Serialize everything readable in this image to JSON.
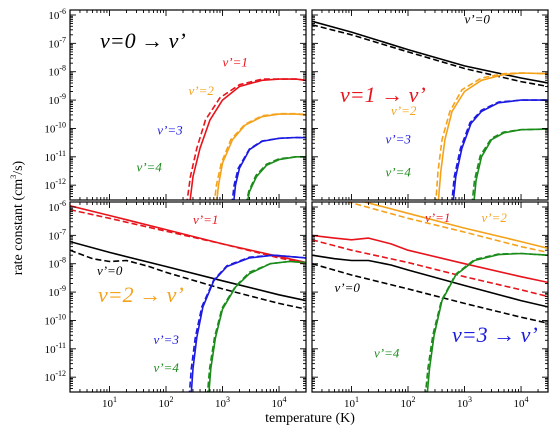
{
  "ylabel": "rate constant (cm3/s)",
  "xlabel": "temperature (K)",
  "colors": {
    "v0": "#000000",
    "v1": "#e8141c",
    "v2": "#f5a21b",
    "v3": "#1c1ae0",
    "v4": "#1a8c1a"
  },
  "chart_data": [
    {
      "type": "line",
      "title": "v=0 → v’",
      "title_color": "#000000",
      "xscale": "log",
      "yscale": "log",
      "xlim": [
        2,
        30000
      ],
      "ylim": [
        3e-13,
        1.5e-06
      ],
      "series": [
        {
          "name": "v’=1",
          "color": "#e8141c",
          "style": "solid",
          "x": [
            250,
            300,
            400,
            600,
            1000,
            2000,
            5000,
            10000,
            20000,
            30000
          ],
          "y": [
            1e-13,
            2e-12,
            2e-11,
            2e-10,
            1e-09,
            3e-09,
            5e-09,
            5.5e-09,
            5.5e-09,
            5e-09
          ]
        },
        {
          "name": "v’=1",
          "color": "#e8141c",
          "style": "dashed",
          "x": [
            220,
            270,
            350,
            500,
            900,
            2000,
            5000,
            10000,
            20000,
            30000
          ],
          "y": [
            1e-13,
            2e-12,
            2e-11,
            2e-10,
            1.2e-09,
            3.5e-09,
            5.5e-09,
            5.5e-09,
            5.5e-09,
            5e-09
          ]
        },
        {
          "name": "v’=2",
          "color": "#f5a21b",
          "style": "solid",
          "x": [
            750,
            850,
            1000,
            1500,
            2500,
            5000,
            10000,
            20000,
            30000
          ],
          "y": [
            1e-13,
            1e-12,
            6e-12,
            4e-11,
            1.3e-10,
            2.6e-10,
            3.2e-10,
            3.2e-10,
            3e-10
          ]
        },
        {
          "name": "v’=2",
          "color": "#f5a21b",
          "style": "dashed",
          "x": [
            680,
            780,
            950,
            1400,
            2500,
            5000,
            10000,
            20000,
            30000
          ],
          "y": [
            1e-13,
            1e-12,
            6e-12,
            4e-11,
            1.4e-10,
            2.8e-10,
            3.3e-10,
            3.3e-10,
            3.1e-10
          ]
        },
        {
          "name": "v’=3",
          "color": "#1c1ae0",
          "style": "solid",
          "x": [
            1500,
            1700,
            2000,
            3000,
            5000,
            10000,
            20000,
            30000
          ],
          "y": [
            1e-13,
            1e-12,
            4e-12,
            1.8e-11,
            3.5e-11,
            4.5e-11,
            4.8e-11,
            4.7e-11
          ]
        },
        {
          "name": "v’=3",
          "color": "#1c1ae0",
          "style": "dashed",
          "x": [
            1400,
            1600,
            1900,
            3000,
            5000,
            10000,
            20000,
            30000
          ],
          "y": [
            1e-13,
            1e-12,
            4e-12,
            1.9e-11,
            3.6e-11,
            4.5e-11,
            4.8e-11,
            4.7e-11
          ]
        },
        {
          "name": "v’=4",
          "color": "#1a8c1a",
          "style": "solid",
          "x": [
            2500,
            3000,
            4000,
            6000,
            10000,
            20000,
            30000
          ],
          "y": [
            1e-13,
            6e-13,
            2e-12,
            5e-12,
            8e-12,
            1e-11,
            1e-11
          ]
        },
        {
          "name": "v’=4",
          "color": "#1a8c1a",
          "style": "dashed",
          "x": [
            2400,
            2900,
            3900,
            6000,
            10000,
            20000,
            30000
          ],
          "y": [
            1e-13,
            6e-13,
            2.2e-12,
            5.5e-12,
            8.5e-12,
            1e-11,
            1e-11
          ]
        }
      ],
      "annotations": [
        {
          "text": "v’=1",
          "color": "#e8141c",
          "x": 1000,
          "y": 1.5e-08
        },
        {
          "text": "v’=2",
          "color": "#f5a21b",
          "x": 250,
          "y": 1.5e-09
        },
        {
          "text": "v’=3",
          "color": "#1c1ae0",
          "x": 70,
          "y": 6e-11
        },
        {
          "text": "v’=4",
          "color": "#1a8c1a",
          "x": 30,
          "y": 3e-12
        }
      ]
    },
    {
      "type": "line",
      "title": "v=1 → v’",
      "title_color": "#e8141c",
      "xscale": "log",
      "yscale": "log",
      "xlim": [
        2,
        30000
      ],
      "ylim": [
        3e-13,
        1.5e-06
      ],
      "series": [
        {
          "name": "v’=0",
          "color": "#000000",
          "style": "solid",
          "x": [
            2,
            10,
            100,
            1000,
            10000,
            30000
          ],
          "y": [
            6e-07,
            2.5e-07,
            6e-08,
            1.6e-08,
            6e-09,
            4e-09
          ]
        },
        {
          "name": "v’=0",
          "color": "#000000",
          "style": "dashed",
          "x": [
            2,
            10,
            100,
            1000,
            10000,
            30000
          ],
          "y": [
            4.5e-07,
            2e-07,
            5e-08,
            1.3e-08,
            4.5e-09,
            3e-09
          ]
        },
        {
          "name": "v’=2",
          "color": "#f5a21b",
          "style": "solid",
          "x": [
            330,
            380,
            450,
            600,
            1000,
            2000,
            5000,
            10000,
            30000
          ],
          "y": [
            1e-13,
            3e-12,
            4e-11,
            4e-10,
            2e-09,
            5e-09,
            8e-09,
            9e-09,
            8.5e-09
          ]
        },
        {
          "name": "v’=2",
          "color": "#f5a21b",
          "style": "dashed",
          "x": [
            300,
            340,
            400,
            550,
            900,
            2000,
            5000,
            10000,
            30000
          ],
          "y": [
            1e-13,
            3e-12,
            4e-11,
            4e-10,
            2.3e-09,
            6e-09,
            8.5e-09,
            9e-09,
            8.5e-09
          ]
        },
        {
          "name": "v’=3",
          "color": "#1c1ae0",
          "style": "solid",
          "x": [
            600,
            700,
            900,
            1300,
            2000,
            4000,
            10000,
            30000
          ],
          "y": [
            1e-13,
            2e-12,
            2e-11,
            1.5e-10,
            4e-10,
            8e-10,
            1e-09,
            1e-09
          ]
        },
        {
          "name": "v’=3",
          "color": "#1c1ae0",
          "style": "dashed",
          "x": [
            570,
            660,
            850,
            1250,
            2000,
            4000,
            10000,
            30000
          ],
          "y": [
            1e-13,
            2e-12,
            2e-11,
            1.6e-10,
            4.4e-10,
            8.5e-10,
            1e-09,
            1e-09
          ]
        },
        {
          "name": "v’=4",
          "color": "#1a8c1a",
          "style": "solid",
          "x": [
            1400,
            1600,
            2000,
            3000,
            5000,
            10000,
            30000
          ],
          "y": [
            1e-13,
            1.5e-12,
            1e-11,
            4e-11,
            7e-11,
            9e-11,
            9.5e-11
          ]
        },
        {
          "name": "v’=4",
          "color": "#1a8c1a",
          "style": "dashed",
          "x": [
            1300,
            1500,
            1900,
            3000,
            5000,
            10000,
            30000
          ],
          "y": [
            1e-13,
            1.5e-12,
            1.1e-11,
            4.5e-11,
            7.5e-11,
            9e-11,
            9.5e-11
          ]
        }
      ],
      "annotations": [
        {
          "text": "v’=0",
          "color": "#000000",
          "x": 1000,
          "y": 5e-07
        },
        {
          "text": "v’=2",
          "color": "#f5a21b",
          "x": 50,
          "y": 3e-10
        },
        {
          "text": "v’=3",
          "color": "#1c1ae0",
          "x": 40,
          "y": 3e-11
        },
        {
          "text": "v’=4",
          "color": "#1a8c1a",
          "x": 40,
          "y": 2e-12
        }
      ]
    },
    {
      "type": "line",
      "title": "v=2 → v’",
      "title_color": "#f5a21b",
      "xscale": "log",
      "yscale": "log",
      "xlim": [
        2,
        30000
      ],
      "ylim": [
        3e-13,
        1.5e-06
      ],
      "series": [
        {
          "name": "v’=1",
          "color": "#e8141c",
          "style": "solid",
          "x": [
            2,
            10,
            100,
            1000,
            10000,
            30000
          ],
          "y": [
            1.1e-06,
            5e-07,
            1.6e-07,
            5e-08,
            1.8e-08,
            1.1e-08
          ]
        },
        {
          "name": "v’=1",
          "color": "#e8141c",
          "style": "dashed",
          "x": [
            2,
            10,
            100,
            1000,
            10000,
            30000
          ],
          "y": [
            8e-07,
            4e-07,
            1.4e-07,
            5e-08,
            1.6e-08,
            1e-08
          ]
        },
        {
          "name": "v’=0",
          "color": "#000000",
          "style": "solid",
          "x": [
            2,
            10,
            100,
            1000,
            10000,
            30000
          ],
          "y": [
            6e-08,
            2.5e-08,
            8e-09,
            2.5e-09,
            8e-10,
            5e-10
          ]
        },
        {
          "name": "v’=0",
          "color": "#000000",
          "style": "dashed",
          "x": [
            2,
            5,
            10,
            20,
            50,
            100,
            1000,
            10000,
            30000
          ],
          "y": [
            3e-08,
            1.5e-08,
            1.2e-08,
            1.3e-08,
            8e-09,
            5e-09,
            1.3e-09,
            4e-10,
            2.5e-10
          ]
        },
        {
          "name": "v’=3",
          "color": "#1c1ae0",
          "style": "solid",
          "x": [
            270,
            300,
            350,
            450,
            700,
            1200,
            3000,
            8000,
            30000
          ],
          "y": [
            1e-13,
            2e-12,
            2.5e-11,
            3e-10,
            2.5e-09,
            8e-09,
            1.6e-08,
            2e-08,
            1.6e-08
          ]
        },
        {
          "name": "v’=3",
          "color": "#1c1ae0",
          "style": "dashed",
          "x": [
            250,
            280,
            330,
            430,
            700,
            1200,
            3000,
            8000,
            30000
          ],
          "y": [
            1e-13,
            2e-12,
            2.5e-11,
            3e-10,
            2.7e-09,
            8.5e-09,
            1.7e-08,
            2e-08,
            1.6e-08
          ]
        },
        {
          "name": "v’=4",
          "color": "#1a8c1a",
          "style": "solid",
          "x": [
            550,
            620,
            750,
            1000,
            1700,
            3000,
            7000,
            15000,
            30000
          ],
          "y": [
            1e-13,
            2e-12,
            2.5e-11,
            2.5e-10,
            1.5e-09,
            4.5e-09,
            1e-08,
            1.2e-08,
            1.1e-08
          ]
        },
        {
          "name": "v’=4",
          "color": "#1a8c1a",
          "style": "dashed",
          "x": [
            520,
            590,
            720,
            980,
            1700,
            3000,
            7000,
            15000,
            30000
          ],
          "y": [
            1e-13,
            2e-12,
            2.5e-11,
            2.7e-10,
            1.6e-09,
            5e-09,
            1e-08,
            1.2e-08,
            1.1e-08
          ]
        }
      ],
      "annotations": [
        {
          "text": "v’=1",
          "color": "#e8141c",
          "x": 300,
          "y": 2.5e-07
        },
        {
          "text": "v’=0",
          "color": "#000000",
          "x": 6,
          "y": 4e-09
        },
        {
          "text": "v’=3",
          "color": "#1c1ae0",
          "x": 60,
          "y": 1.5e-11
        },
        {
          "text": "v’=4",
          "color": "#1a8c1a",
          "x": 60,
          "y": 1.5e-12
        }
      ]
    },
    {
      "type": "line",
      "title": "v=3 → v’",
      "title_color": "#1c1ae0",
      "xscale": "log",
      "yscale": "log",
      "xlim": [
        2,
        30000
      ],
      "ylim": [
        3e-13,
        1.5e-06
      ],
      "series": [
        {
          "name": "v’=2",
          "color": "#f5a21b",
          "style": "solid",
          "x": [
            2,
            10,
            100,
            1000,
            10000,
            30000
          ],
          "y": [
            5e-06,
            2e-06,
            6e-07,
            1.8e-07,
            6e-08,
            3.5e-08
          ]
        },
        {
          "name": "v’=2",
          "color": "#f5a21b",
          "style": "dashed",
          "x": [
            2,
            10,
            100,
            1000,
            10000,
            30000
          ],
          "y": [
            3.5e-06,
            1.4e-06,
            4e-07,
            1.3e-07,
            4e-08,
            2.5e-08
          ]
        },
        {
          "name": "v’=1",
          "color": "#e8141c",
          "style": "solid",
          "x": [
            2,
            5,
            10,
            20,
            50,
            100,
            1000,
            10000,
            30000
          ],
          "y": [
            1e-07,
            8e-08,
            7e-08,
            8e-08,
            5e-08,
            3e-08,
            1e-08,
            3.5e-09,
            2.2e-09
          ]
        },
        {
          "name": "v’=1",
          "color": "#e8141c",
          "style": "dashed",
          "x": [
            2,
            10,
            100,
            1000,
            10000,
            30000
          ],
          "y": [
            7e-08,
            3e-08,
            1.1e-08,
            3.5e-09,
            1.2e-09,
            7e-10
          ]
        },
        {
          "name": "v’=0",
          "color": "#000000",
          "style": "solid",
          "x": [
            2,
            5,
            10,
            20,
            50,
            100,
            1000,
            10000,
            30000
          ],
          "y": [
            2e-08,
            1.5e-08,
            1.3e-08,
            1.3e-08,
            9e-09,
            6e-09,
            1.7e-09,
            5e-10,
            3e-10
          ]
        },
        {
          "name": "v’=0",
          "color": "#000000",
          "style": "dashed",
          "x": [
            2,
            10,
            100,
            1000,
            10000,
            30000
          ],
          "y": [
            1e-08,
            4e-09,
            1.3e-09,
            4e-10,
            1.3e-10,
            8e-11
          ]
        },
        {
          "name": "v’=4",
          "color": "#1a8c1a",
          "style": "solid",
          "x": [
            210,
            240,
            290,
            400,
            700,
            1500,
            4000,
            10000,
            30000
          ],
          "y": [
            1e-13,
            2e-12,
            3e-11,
            5e-10,
            4e-09,
            1.3e-08,
            2.1e-08,
            2.3e-08,
            2e-08
          ]
        },
        {
          "name": "v’=4",
          "color": "#1a8c1a",
          "style": "dashed",
          "x": [
            195,
            225,
            275,
            390,
            700,
            1500,
            4000,
            10000,
            30000
          ],
          "y": [
            1e-13,
            2e-12,
            3e-11,
            5e-10,
            4.3e-09,
            1.4e-08,
            2.2e-08,
            2.3e-08,
            2e-08
          ]
        }
      ],
      "annotations": [
        {
          "text": "v’=1",
          "color": "#e8141c",
          "x": 200,
          "y": 3e-07
        },
        {
          "text": "v’=2",
          "color": "#f5a21b",
          "x": 2000,
          "y": 3e-07
        },
        {
          "text": "v’=0",
          "color": "#000000",
          "x": 5,
          "y": 1e-09
        },
        {
          "text": "v’=4",
          "color": "#1a8c1a",
          "x": 25,
          "y": 5e-12
        }
      ]
    }
  ]
}
